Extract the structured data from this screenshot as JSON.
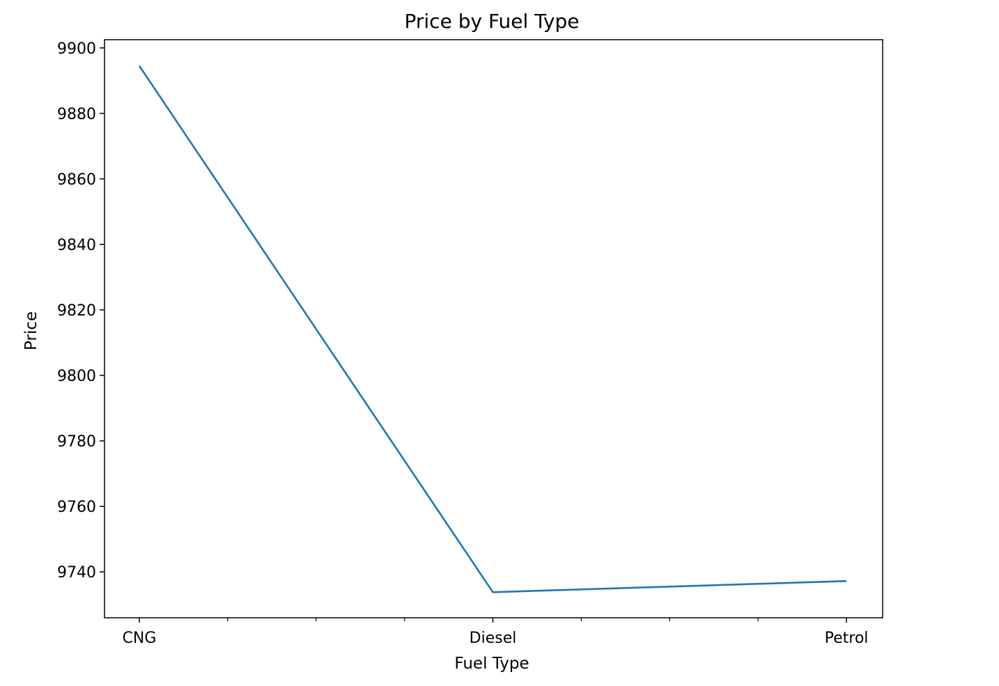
{
  "chart_data": {
    "type": "line",
    "title": "Price by Fuel Type",
    "xlabel": "Fuel Type",
    "ylabel": "Price",
    "categories": [
      "CNG",
      "Diesel",
      "Petrol"
    ],
    "series": [
      {
        "values": [
          9894.5,
          9733.8,
          9737.2
        ],
        "color": "#1f77b4"
      }
    ],
    "ylim": [
      9726.0,
      9902.5
    ],
    "yticks": [
      9740,
      9760,
      9780,
      9800,
      9820,
      9840,
      9860,
      9880,
      9900
    ],
    "minor_x_ticks_between": 3,
    "grid": false,
    "legend": "none"
  }
}
